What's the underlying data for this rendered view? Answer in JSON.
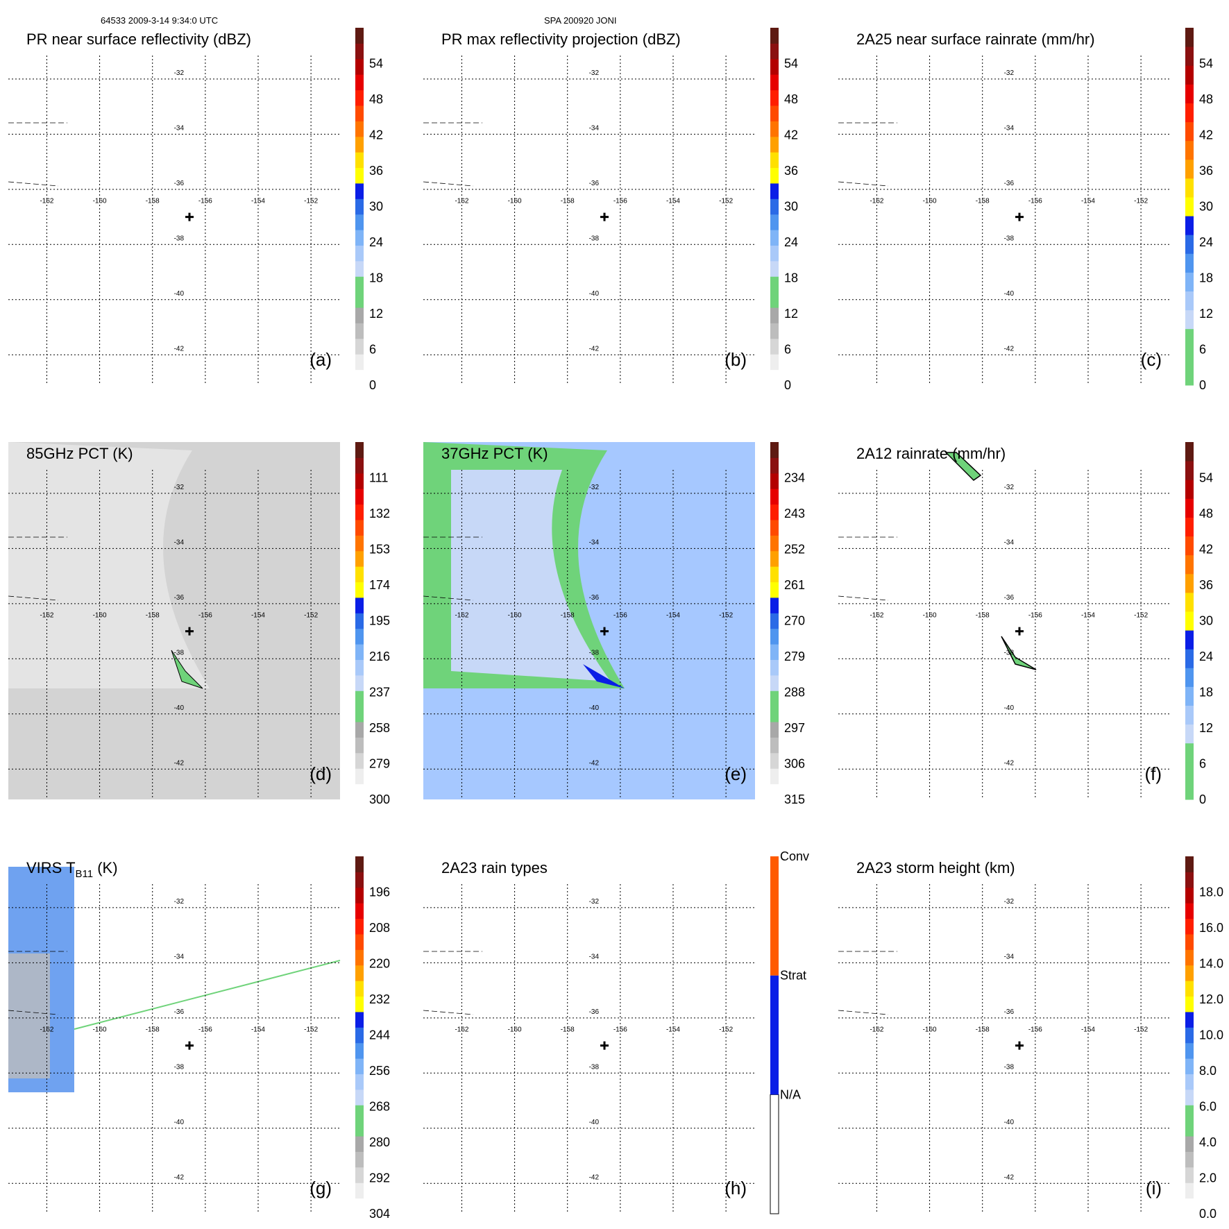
{
  "header": {
    "orbit_time": "64533 2009-3-14 9:34:0 UTC",
    "storm": "SPA 200920 JONI"
  },
  "grid": {
    "lon_ticks": [
      "-162",
      "-160",
      "-158",
      "-156",
      "-154",
      "-152"
    ],
    "lat_ticks": [
      "-32",
      "-34",
      "-36",
      "-38",
      "-40",
      "-42"
    ],
    "lon_range": [
      -163,
      -151
    ],
    "lat_range": [
      -31,
      -43
    ],
    "center": {
      "lon": -156.6,
      "lat": -37.0,
      "marker": "plus"
    }
  },
  "colors": {
    "tb_background_gray": "#d3d3d3",
    "pct37_background_blue": "#a6c8ff",
    "swath_green": "#6fd37a",
    "conv_orange": "#ff5a00",
    "strat_blue": "#0a1ee6"
  },
  "chart_data": [
    {
      "type": "heatmap",
      "panel": "(a)",
      "title": "PR near surface reflectivity (dBZ)",
      "colorbar": {
        "ticks": [
          "0",
          "6",
          "12",
          "18",
          "24",
          "30",
          "36",
          "42",
          "48",
          "54"
        ],
        "vmin": 0,
        "vmax": 60,
        "palette": "reflectivity"
      }
    },
    {
      "type": "heatmap",
      "panel": "(b)",
      "title": "PR max reflectivity projection (dBZ)",
      "colorbar": {
        "ticks": [
          "0",
          "6",
          "12",
          "18",
          "24",
          "30",
          "36",
          "42",
          "48",
          "54"
        ],
        "vmin": 0,
        "vmax": 60,
        "palette": "reflectivity"
      }
    },
    {
      "type": "heatmap",
      "panel": "(c)",
      "title": "2A25 near surface rainrate (mm/hr)",
      "colorbar": {
        "ticks": [
          "0",
          "6",
          "12",
          "18",
          "24",
          "30",
          "36",
          "42",
          "48",
          "54"
        ],
        "vmin": 0,
        "vmax": 60,
        "palette": "rainrate"
      }
    },
    {
      "type": "heatmap",
      "panel": "(d)",
      "title": "85GHz PCT (K)",
      "background": "gray",
      "colorbar": {
        "ticks": [
          "300",
          "279",
          "258",
          "237",
          "216",
          "195",
          "174",
          "153",
          "132",
          "111"
        ],
        "vmin": 90,
        "vmax": 300,
        "palette": "reflectivity_reversed"
      }
    },
    {
      "type": "heatmap",
      "panel": "(e)",
      "title": "37GHz PCT (K)",
      "background": "blue",
      "colorbar": {
        "ticks": [
          "315",
          "306",
          "297",
          "288",
          "279",
          "270",
          "261",
          "252",
          "243",
          "234"
        ],
        "vmin": 225,
        "vmax": 315,
        "palette": "reflectivity_reversed"
      }
    },
    {
      "type": "heatmap",
      "panel": "(f)",
      "title": "2A12 rainrate (mm/hr)",
      "colorbar": {
        "ticks": [
          "0",
          "6",
          "12",
          "18",
          "24",
          "30",
          "36",
          "42",
          "48",
          "54"
        ],
        "vmin": 0,
        "vmax": 60,
        "palette": "rainrate"
      }
    },
    {
      "type": "heatmap",
      "panel": "(g)",
      "title": "VIRS T",
      "title_sub": "B11",
      "title_suffix": " (K)",
      "colorbar": {
        "ticks": [
          "304",
          "292",
          "280",
          "268",
          "256",
          "244",
          "232",
          "220",
          "208",
          "196"
        ],
        "vmin": 184,
        "vmax": 304,
        "palette": "reflectivity_reversed"
      }
    },
    {
      "type": "heatmap",
      "panel": "(h)",
      "title": "2A23 rain types",
      "colorbar": {
        "ticks": [
          "N/A",
          "Strat",
          "Conv"
        ],
        "palette": "categorical"
      }
    },
    {
      "type": "heatmap",
      "panel": "(i)",
      "title": "2A23 storm height (km)",
      "colorbar": {
        "ticks": [
          "0.0",
          "2.0",
          "4.0",
          "6.0",
          "8.0",
          "10.0",
          "12.0",
          "14.0",
          "16.0",
          "18.0"
        ],
        "vmin": 0,
        "vmax": 20,
        "palette": "reflectivity"
      }
    }
  ]
}
